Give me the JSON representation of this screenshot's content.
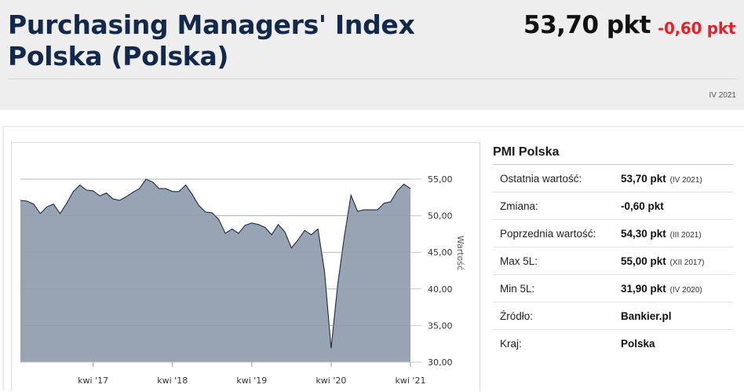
{
  "header": {
    "title": "Purchasing Managers' Index Polska (Polska)",
    "value": "53,70 pkt",
    "change": "-0,60 pkt",
    "period": "IV 2021"
  },
  "colors": {
    "title": "#13294b",
    "negative": "#e8202a",
    "area_fill": "#98a4b3",
    "area_line": "#1d2b44"
  },
  "info": {
    "title": "PMI Polska",
    "rows": [
      {
        "label": "Ostatnia wartość:",
        "value": "53,70 pkt",
        "note": "(IV 2021)"
      },
      {
        "label": "Zmiana:",
        "value": "-0,60 pkt",
        "note": ""
      },
      {
        "label": "Poprzednia wartość:",
        "value": "54,30 pkt",
        "note": "(III 2021)"
      },
      {
        "label": "Max 5L:",
        "value": "55,00 pkt",
        "note": "(XII 2017)"
      },
      {
        "label": "Min 5L:",
        "value": "31,90 pkt",
        "note": "(IV 2020)"
      },
      {
        "label": "Źródło:",
        "value": "Bankier.pl",
        "note": ""
      },
      {
        "label": "Kraj:",
        "value": "Polska",
        "note": ""
      }
    ]
  },
  "chart_data": {
    "type": "area",
    "ylabel": "Wartość",
    "ylim": [
      30,
      55
    ],
    "yticks": [
      "55,00",
      "50,00",
      "45,00",
      "40,00",
      "35,00",
      "30,00"
    ],
    "ytick_values": [
      55,
      50,
      45,
      40,
      35,
      30
    ],
    "xticks": [
      "kwi '17",
      "kwi '18",
      "kwi '19",
      "kwi '20",
      "kwi '21"
    ],
    "grid": true,
    "x": [
      "2016-05",
      "2016-06",
      "2016-07",
      "2016-08",
      "2016-09",
      "2016-10",
      "2016-11",
      "2016-12",
      "2017-01",
      "2017-02",
      "2017-03",
      "2017-04",
      "2017-05",
      "2017-06",
      "2017-07",
      "2017-08",
      "2017-09",
      "2017-10",
      "2017-11",
      "2017-12",
      "2018-01",
      "2018-02",
      "2018-03",
      "2018-04",
      "2018-05",
      "2018-06",
      "2018-07",
      "2018-08",
      "2018-09",
      "2018-10",
      "2018-11",
      "2018-12",
      "2019-01",
      "2019-02",
      "2019-03",
      "2019-04",
      "2019-05",
      "2019-06",
      "2019-07",
      "2019-08",
      "2019-09",
      "2019-10",
      "2019-11",
      "2019-12",
      "2020-01",
      "2020-02",
      "2020-03",
      "2020-04",
      "2020-05",
      "2020-06",
      "2020-07",
      "2020-08",
      "2020-09",
      "2020-10",
      "2020-11",
      "2020-12",
      "2021-01",
      "2021-02",
      "2021-03",
      "2021-04"
    ],
    "values": [
      52.1,
      52.0,
      51.6,
      50.3,
      51.2,
      51.6,
      50.3,
      51.7,
      53.3,
      54.2,
      53.5,
      53.4,
      52.7,
      53.1,
      52.3,
      52.1,
      52.6,
      53.2,
      53.7,
      55.0,
      54.6,
      53.7,
      53.7,
      53.3,
      53.3,
      54.2,
      52.9,
      51.4,
      50.5,
      50.4,
      49.5,
      47.6,
      48.2,
      47.6,
      48.7,
      49.0,
      48.8,
      48.4,
      47.4,
      48.8,
      47.8,
      45.6,
      46.7,
      48.0,
      47.4,
      48.2,
      42.4,
      31.9,
      40.6,
      47.2,
      52.8,
      50.6,
      50.8,
      50.8,
      50.8,
      51.7,
      51.9,
      53.4,
      54.3,
      53.7
    ]
  }
}
